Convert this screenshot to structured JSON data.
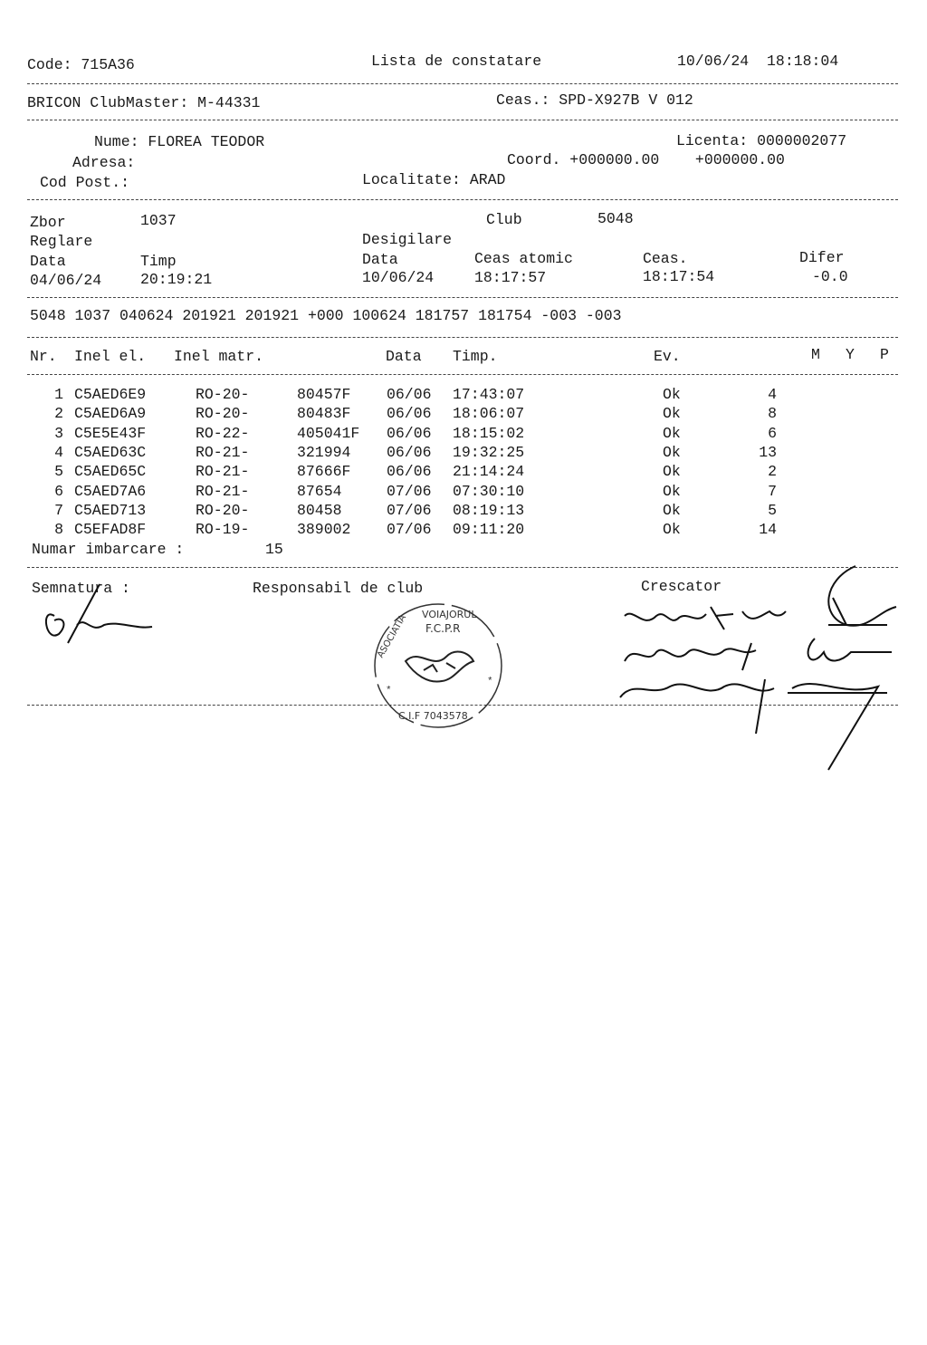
{
  "header": {
    "code": "Code: 715A36",
    "title": "Lista de constatare",
    "datetime": "10/06/24  18:18:04"
  },
  "device": {
    "clubmaster": "BRICON ClubMaster: M-44331",
    "ceas": "Ceas.: SPD-X927B V 012"
  },
  "owner": {
    "nume": "Nume: FLOREA TEODOR",
    "licenta": "Licenta: 0000002077",
    "adresa": "Adresa:",
    "coord": "Coord. +000000.00    +000000.00",
    "cod_post": "Cod Post.:",
    "localitate": "Localitate: ARAD"
  },
  "flight": {
    "zbor_label": "Zbor",
    "zbor": "1037",
    "club_label": "Club",
    "club": "5048",
    "reglare": "Reglare",
    "desigilare": "Desigilare",
    "data_label": "Data",
    "timp_label": "Timp",
    "data2_label": "Data",
    "ceas_atomic_label": "Ceas atomic",
    "ceas_label": "Ceas.",
    "difer_label": "Difer",
    "reglare_data": "04/06/24",
    "reglare_timp": "20:19:21",
    "desig_data": "10/06/24",
    "ceas_atomic": "18:17:57",
    "ceas": "18:17:54",
    "difer": "-0.0"
  },
  "code_line": "5048 1037 040624 201921 201921 +000 100624 181757 181754 -003 -003",
  "table": {
    "headers": {
      "nr": "Nr.",
      "inel_el": "Inel el.",
      "inel_matr": "Inel matr.",
      "data": "Data",
      "timp": "Timp.",
      "ev": "Ev.",
      "m": "M",
      "y": "Y",
      "p": "P"
    },
    "rows": [
      {
        "nr": "1",
        "inel_el": "C5AED6E9",
        "prefix": "RO-20-",
        "matr": "80457F",
        "data": "06/06",
        "timp": "17:43:07",
        "ev": "Ok",
        "m": "4"
      },
      {
        "nr": "2",
        "inel_el": "C5AED6A9",
        "prefix": "RO-20-",
        "matr": "80483F",
        "data": "06/06",
        "timp": "18:06:07",
        "ev": "Ok",
        "m": "8"
      },
      {
        "nr": "3",
        "inel_el": "C5E5E43F",
        "prefix": "RO-22-",
        "matr": "405041F",
        "data": "06/06",
        "timp": "18:15:02",
        "ev": "Ok",
        "m": "6"
      },
      {
        "nr": "4",
        "inel_el": "C5AED63C",
        "prefix": "RO-21-",
        "matr": "321994",
        "data": "06/06",
        "timp": "19:32:25",
        "ev": "Ok",
        "m": "13"
      },
      {
        "nr": "5",
        "inel_el": "C5AED65C",
        "prefix": "RO-21-",
        "matr": "87666F",
        "data": "06/06",
        "timp": "21:14:24",
        "ev": "Ok",
        "m": "2"
      },
      {
        "nr": "6",
        "inel_el": "C5AED7A6",
        "prefix": "RO-21-",
        "matr": "87654",
        "data": "07/06",
        "timp": "07:30:10",
        "ev": "Ok",
        "m": "7"
      },
      {
        "nr": "7",
        "inel_el": "C5AED713",
        "prefix": "RO-20-",
        "matr": "80458",
        "data": "07/06",
        "timp": "08:19:13",
        "ev": "Ok",
        "m": "5"
      },
      {
        "nr": "8",
        "inel_el": "C5EFAD8F",
        "prefix": "RO-19-",
        "matr": "389002",
        "data": "07/06",
        "timp": "09:11:20",
        "ev": "Ok",
        "m": "14"
      }
    ],
    "numar_label": "Numar imbarcare :",
    "numar": "15"
  },
  "footer": {
    "semnatura": "Semnatura :",
    "responsabil": "Responsabil de club",
    "crescator": "Crescator"
  },
  "stamp": {
    "text_top": "ASOCIATIA VOIAJORUL",
    "text_mid": "F.C.P.R",
    "text_bottom": "C.I.F 7043578"
  }
}
